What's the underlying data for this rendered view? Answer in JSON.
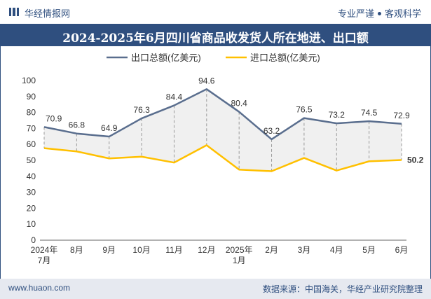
{
  "header": {
    "brand": "华经情报网",
    "tag1": "专业严谨",
    "tag2": "客观科学"
  },
  "colors": {
    "brand": "#2f4f7f",
    "export_line": "#5a6e8e",
    "import_line": "#ffc000",
    "fill": "#f0f0f0"
  },
  "chart_data": {
    "type": "line",
    "title": "2024-2025年6月四川省商品收发货人所在地进、出口额",
    "categories": [
      "2024年\n7月",
      "8月",
      "9月",
      "10月",
      "11月",
      "12月",
      "2025年\n1月",
      "2月",
      "3月",
      "4月",
      "5月",
      "6月"
    ],
    "series": [
      {
        "name": "出口总额(亿美元)",
        "values": [
          70.9,
          66.8,
          64.9,
          76.3,
          84.4,
          94.6,
          80.4,
          63.2,
          76.5,
          73.2,
          74.5,
          72.9
        ]
      },
      {
        "name": "进口总额(亿美元)",
        "values": [
          57.6,
          55.6,
          51.2,
          52.3,
          48.6,
          59.5,
          44.2,
          43.2,
          51.5,
          43.6,
          49.4,
          50.2
        ]
      }
    ],
    "ylim": [
      0,
      100
    ],
    "yticks": [
      0,
      10,
      20,
      30,
      40,
      50,
      60,
      70,
      80,
      90,
      100
    ],
    "labeled_import_point": "50.2",
    "legend": "top-center",
    "xlabel": "",
    "ylabel": ""
  },
  "footer": {
    "website": "www.huaon.com",
    "source": "数据来源：中国海关，华经产业研究院整理"
  }
}
